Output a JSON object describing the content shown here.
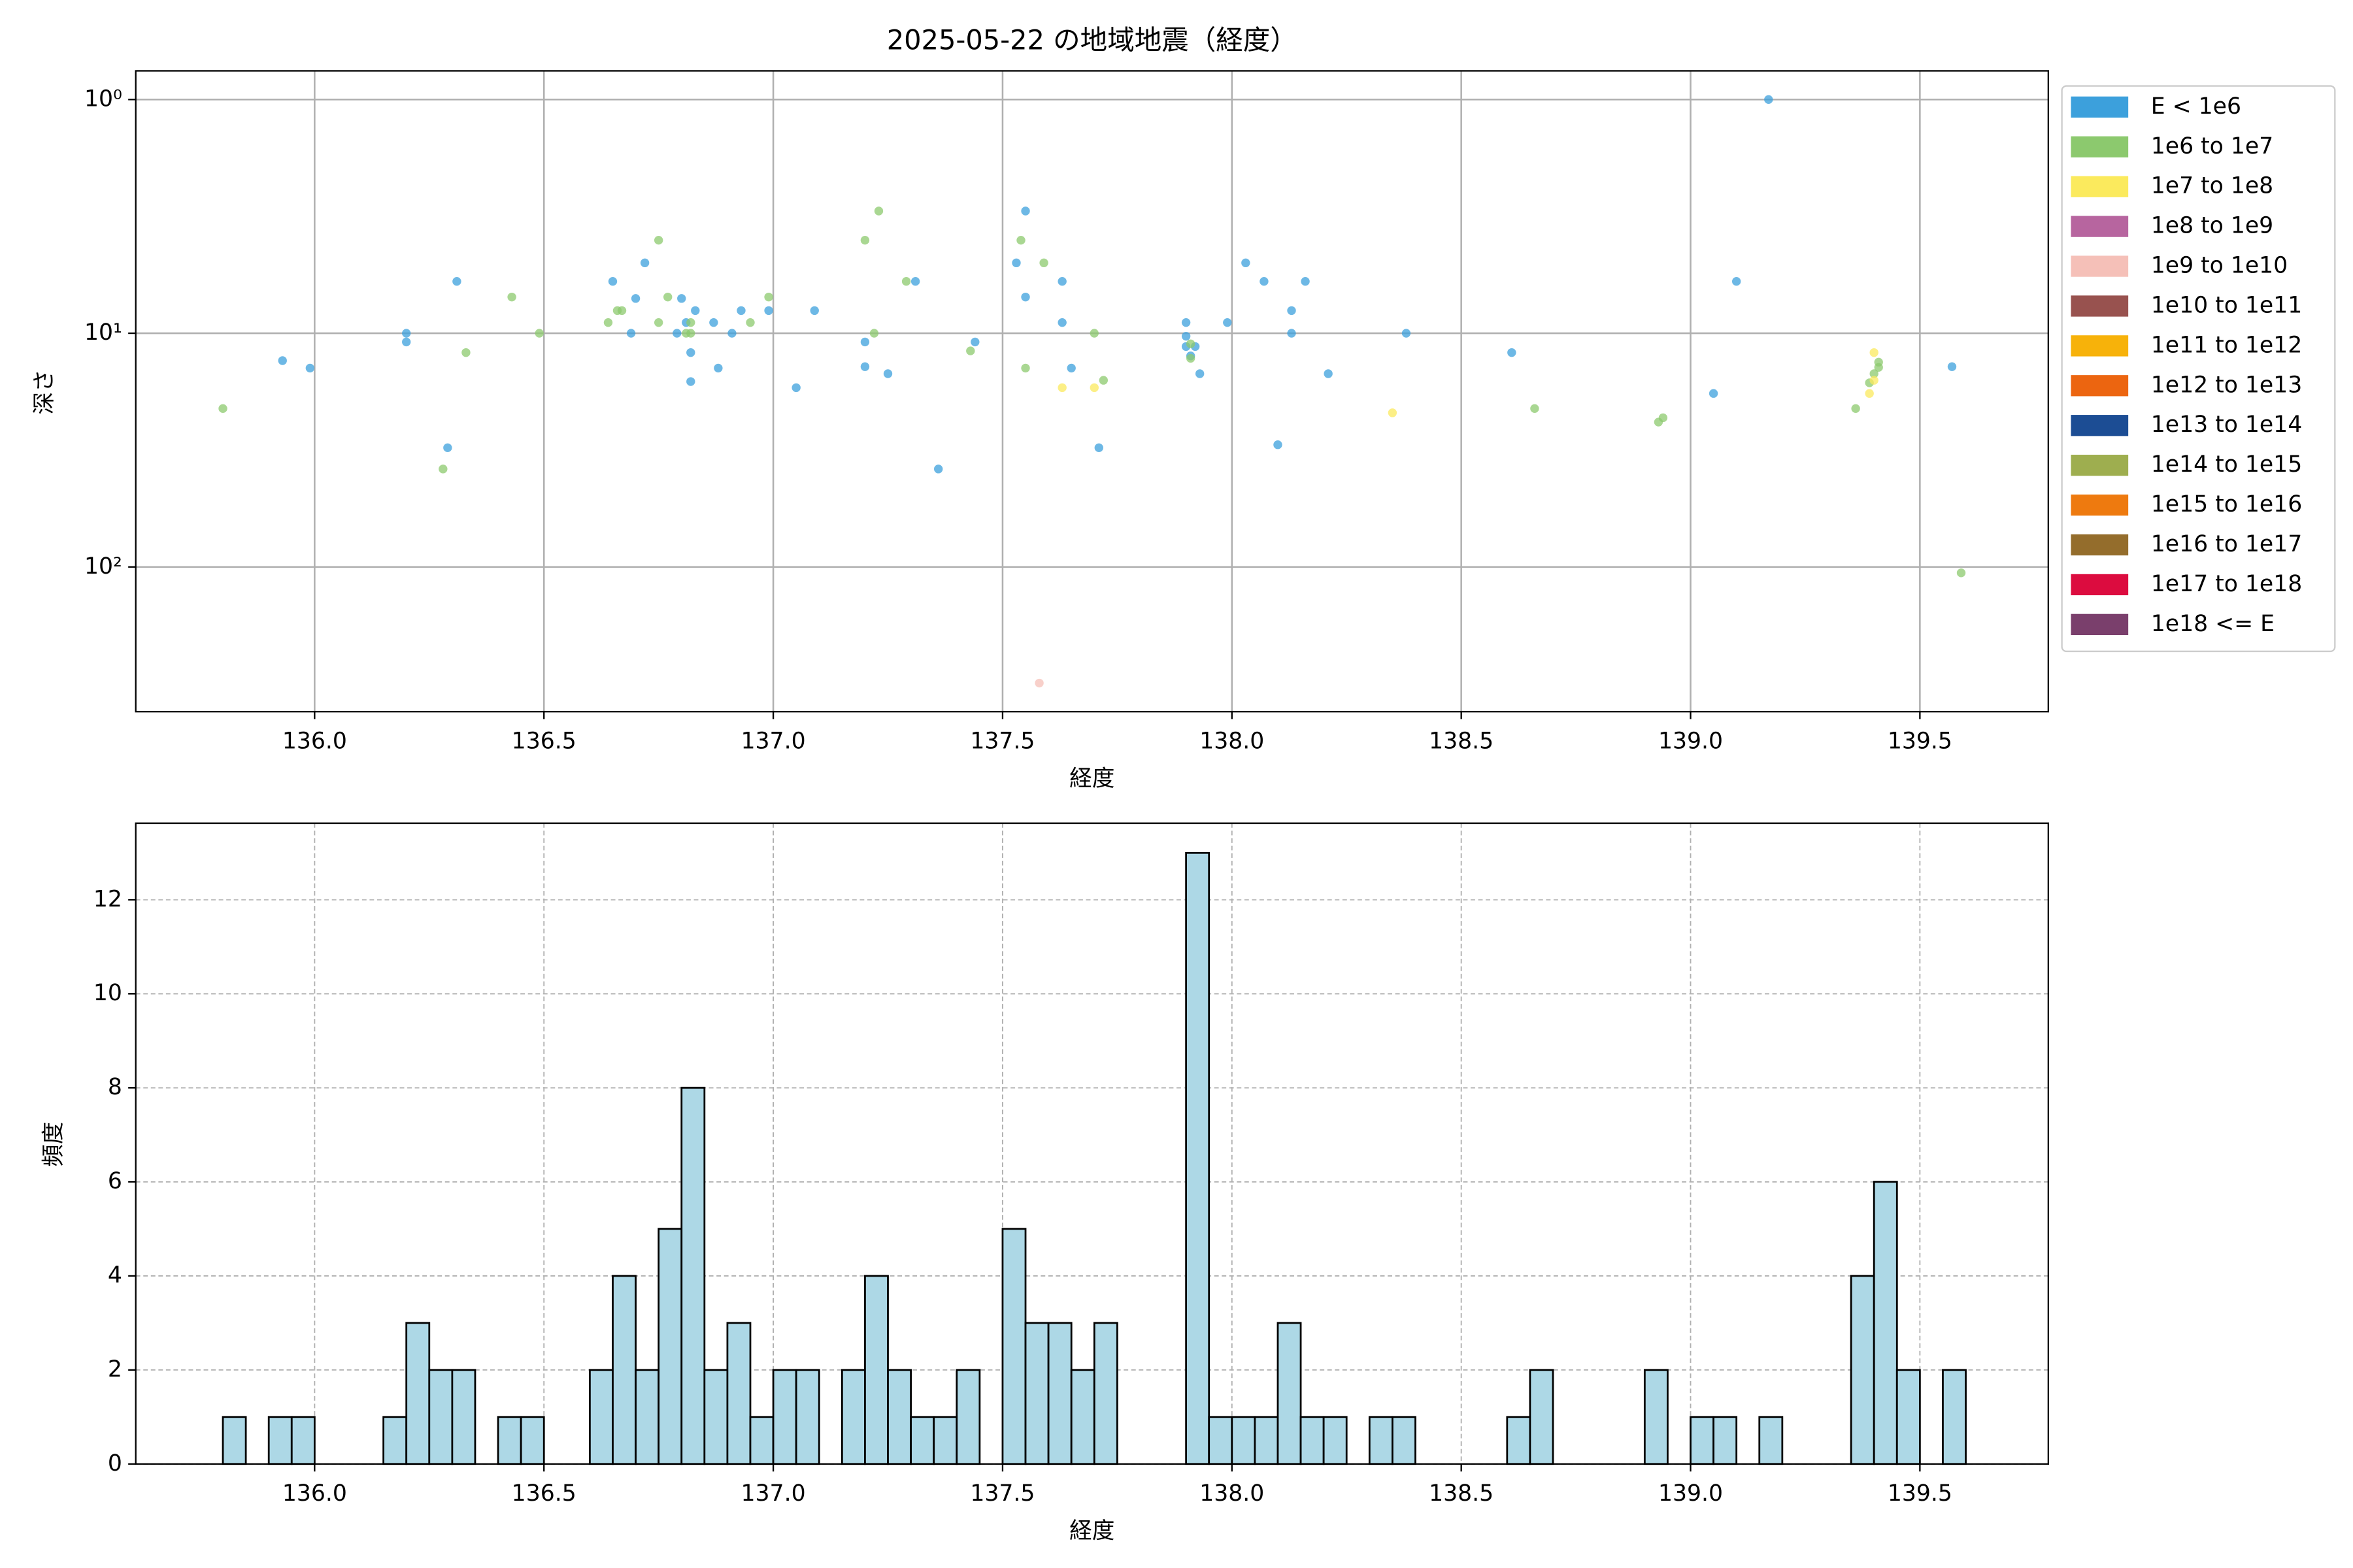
{
  "chart_data": [
    {
      "type": "scatter",
      "title": "2025-05-22 の地域地震（経度）",
      "x_label": "経度",
      "y_label": "深さ",
      "xlim": [
        135.61,
        139.78
      ],
      "ylim": [
        416,
        0.754
      ],
      "y_scale": "log",
      "grid": true,
      "legend": "outside right",
      "xticks": [
        {
          "value": 136,
          "label": "136.0"
        },
        136.5,
        {
          "value": 137,
          "label": "137.0"
        },
        137.5,
        {
          "value": 138,
          "label": "138.0"
        },
        138.5,
        {
          "value": 139,
          "label": "139.0"
        },
        139.5
      ],
      "yticks": [
        {
          "value": 1,
          "label": "10⁰"
        },
        {
          "value": 10,
          "label": "10¹"
        },
        {
          "value": 100,
          "label": "10²"
        }
      ],
      "series": [
        {
          "name": "E < 1e6",
          "color": "#3ca0dc",
          "x": [
            135.93,
            135.99,
            136.2,
            136.2,
            136.31,
            136.29,
            136.65,
            136.72,
            136.7,
            136.69,
            136.8,
            136.79,
            136.81,
            136.82,
            136.83,
            136.82,
            136.87,
            136.88,
            136.91,
            136.93,
            136.99,
            137.05,
            137.09,
            137.2,
            137.2,
            137.25,
            137.31,
            137.36,
            137.44,
            137.53,
            137.55,
            137.55,
            137.63,
            137.63,
            137.65,
            137.71,
            137.9,
            137.9,
            137.9,
            137.91,
            137.92,
            137.93,
            137.99,
            138.03,
            138.07,
            138.1,
            138.13,
            138.13,
            138.16,
            138.21,
            138.38,
            138.61,
            139.05,
            139.1,
            139.17,
            139.57
          ],
          "values": [
            13.1,
            14.1,
            10,
            10.9,
            6.0,
            30.9,
            6.0,
            5.0,
            7.1,
            10,
            7.1,
            10,
            9.0,
            12.1,
            8.0,
            16.1,
            9.0,
            14.1,
            10,
            8.0,
            8.0,
            17.1,
            8.0,
            10.9,
            13.9,
            14.9,
            6.0,
            38.1,
            10.9,
            5.0,
            3.0,
            7.0,
            6.0,
            9.0,
            14.1,
            30.9,
            9.0,
            10.3,
            11.4,
            12.5,
            11.4,
            14.9,
            9.0,
            5.0,
            6.0,
            30.0,
            8.0,
            10,
            6.0,
            14.9,
            10,
            12.1,
            18.1,
            6.0,
            1.0,
            13.9
          ]
        },
        {
          "name": "1e6 to 1e7",
          "color": "#8cc96e",
          "x": [
            135.8,
            136.28,
            136.33,
            136.43,
            136.49,
            136.64,
            136.66,
            136.67,
            136.75,
            136.75,
            136.77,
            136.81,
            136.82,
            136.82,
            136.95,
            136.99,
            137.2,
            137.23,
            137.22,
            137.29,
            137.43,
            137.54,
            137.55,
            137.59,
            137.7,
            137.72,
            137.91,
            137.91,
            138.66,
            138.93,
            138.94,
            139.36,
            139.39,
            139.4,
            139.41,
            139.41,
            139.59
          ],
          "values": [
            21.0,
            38.1,
            12.1,
            7.0,
            10,
            9.0,
            8.0,
            8.0,
            4.0,
            9.0,
            7.0,
            10,
            9.0,
            10,
            9.0,
            7.0,
            4.0,
            3.0,
            10,
            6.0,
            11.9,
            4.0,
            14.1,
            5.0,
            10,
            15.9,
            11.1,
            12.8,
            21.0,
            24.0,
            23.0,
            21.0,
            16.3,
            14.9,
            13.3,
            14.0,
            106
          ]
        },
        {
          "name": "1e7 to 1e8",
          "color": "#fbea5d",
          "x": [
            137.63,
            137.7,
            138.35,
            139.39,
            139.4,
            139.4
          ],
          "values": [
            17.1,
            17.1,
            21.9,
            18.1,
            12.1,
            15.9
          ]
        },
        {
          "name": "1e8 to 1e9",
          "color": "#b7659f",
          "x": [],
          "values": []
        },
        {
          "name": "1e9 to 1e10",
          "color": "#f5c0b8",
          "x": [
            137.58
          ],
          "values": [
            314
          ]
        },
        {
          "name": "1e10 to 1e11",
          "color": "#98524f",
          "x": [],
          "values": []
        },
        {
          "name": "1e11 to 1e12",
          "color": "#f7b20a",
          "x": [],
          "values": []
        },
        {
          "name": "1e12 to 1e13",
          "color": "#ec6510",
          "x": [],
          "values": []
        },
        {
          "name": "1e13 to 1e14",
          "color": "#1c4d94",
          "x": [],
          "values": []
        },
        {
          "name": "1e14 to 1e15",
          "color": "#9eae4f",
          "x": [],
          "values": []
        },
        {
          "name": "1e15 to 1e16",
          "color": "#ee7a0f",
          "x": [],
          "values": []
        },
        {
          "name": "1e16 to 1e17",
          "color": "#946d2c",
          "x": [],
          "values": []
        },
        {
          "name": "1e17 to 1e18",
          "color": "#dc0c3f",
          "x": [],
          "values": []
        },
        {
          "name": "1e18 <= E",
          "color": "#7a3f6c",
          "x": [],
          "values": []
        }
      ]
    },
    {
      "type": "histogram",
      "x_label": "経度",
      "y_label": "頻度",
      "color": "#add8e6",
      "grid": true,
      "xlim": [
        135.61,
        139.78
      ],
      "ylim": [
        0,
        13.63
      ],
      "xticks": [
        {
          "value": 136,
          "label": "136.0"
        },
        136.5,
        {
          "value": 137,
          "label": "137.0"
        },
        137.5,
        {
          "value": 138,
          "label": "138.0"
        },
        138.5,
        {
          "value": 139,
          "label": "139.0"
        },
        139.5
      ],
      "yticks": [
        0,
        2,
        4,
        6,
        8,
        10,
        12
      ],
      "bins": [
        135.8,
        135.85,
        135.9,
        135.95,
        136.0,
        136.05,
        136.1,
        136.15,
        136.2,
        136.25,
        136.3,
        136.35,
        136.4,
        136.45,
        136.5,
        136.55,
        136.6,
        136.65,
        136.7,
        136.75,
        136.8,
        136.85,
        136.9,
        136.95,
        137.0,
        137.05,
        137.1,
        137.15,
        137.2,
        137.25,
        137.3,
        137.35,
        137.4,
        137.45,
        137.5,
        137.55,
        137.6,
        137.65,
        137.7,
        137.75,
        137.8,
        137.85,
        137.9,
        137.95,
        138.0,
        138.05,
        138.1,
        138.15,
        138.2,
        138.25,
        138.3,
        138.35,
        138.4,
        138.45,
        138.5,
        138.55,
        138.6,
        138.65,
        138.7,
        138.75,
        138.8,
        138.85,
        138.9,
        138.95,
        139.0,
        139.05,
        139.1,
        139.15,
        139.2,
        139.25,
        139.3,
        139.35,
        139.4,
        139.45,
        139.5,
        139.55,
        139.6
      ],
      "values": [
        1,
        0,
        1,
        1,
        0,
        0,
        0,
        1,
        3,
        2,
        2,
        0,
        1,
        1,
        0,
        0,
        2,
        4,
        2,
        5,
        8,
        2,
        3,
        1,
        2,
        2,
        0,
        2,
        4,
        2,
        1,
        1,
        2,
        0,
        5,
        3,
        3,
        2,
        3,
        0,
        0,
        0,
        13,
        1,
        1,
        1,
        3,
        1,
        1,
        0,
        1,
        1,
        0,
        0,
        0,
        0,
        1,
        2,
        0,
        0,
        0,
        0,
        2,
        0,
        1,
        1,
        0,
        1,
        0,
        0,
        0,
        4,
        6,
        2,
        0,
        2
      ]
    }
  ]
}
